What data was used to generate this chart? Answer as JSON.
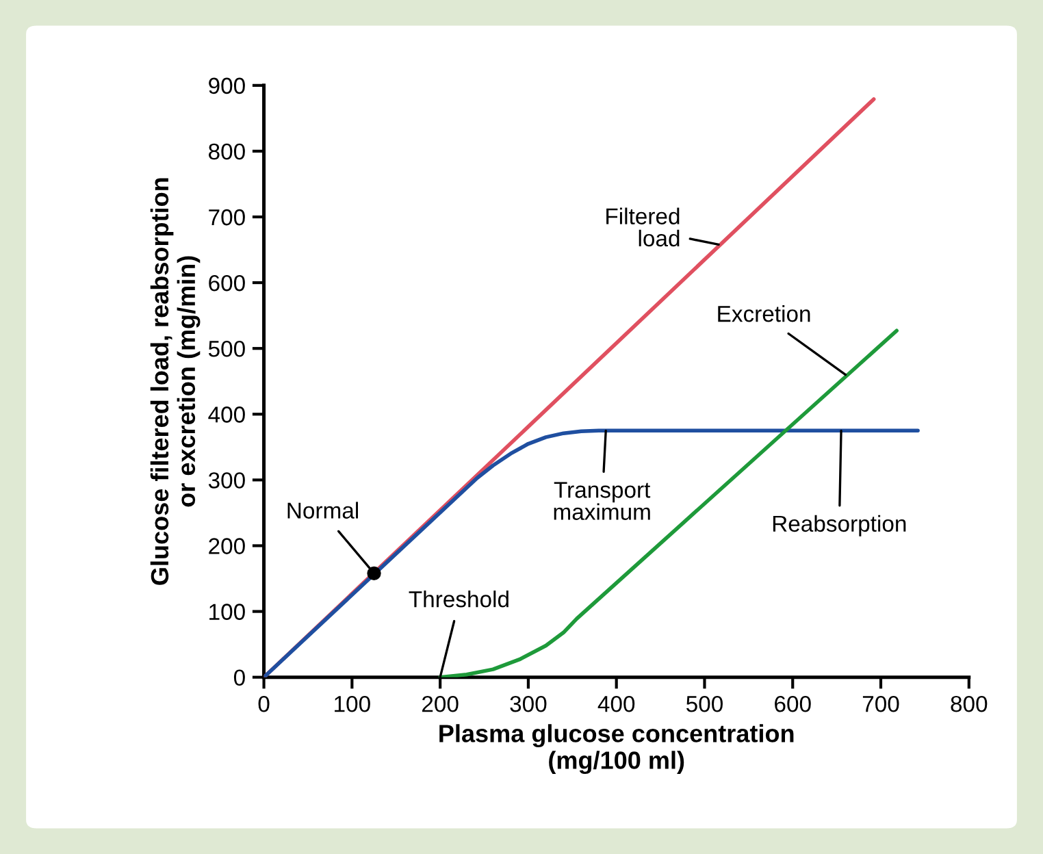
{
  "chart_data": {
    "type": "line",
    "xlabel": "Plasma glucose concentration\n(mg/100 ml)",
    "ylabel": "Glucose filtered load, reabsorption\nor excretion (mg/min)",
    "series": [
      {
        "color": "#e05060",
        "x": [
          0,
          692
        ],
        "values": [
          0,
          879
        ]
      },
      {
        "color": "#1f4fa0",
        "x": [
          0,
          242,
          260,
          280,
          300,
          320,
          340,
          360,
          380,
          742
        ],
        "values": [
          0,
          303,
          322,
          340,
          355,
          365,
          371,
          374,
          375,
          375
        ]
      },
      {
        "color": "#1e9a3a",
        "x": [
          200,
          230,
          260,
          290,
          320,
          340,
          355,
          718
        ],
        "values": [
          0,
          4,
          12,
          27,
          48,
          68,
          89,
          527
        ]
      },
      {
        "type": "scatter",
        "marker": "circle",
        "color": "#000000",
        "x": [
          125
        ],
        "values": [
          158
        ]
      }
    ],
    "annotations": [
      {
        "text": "Filtered\nload",
        "x": 516,
        "y": 658
      },
      {
        "text": "Excretion",
        "x": 660,
        "y": 460
      },
      {
        "text": "Transport\nmaximum",
        "x": 388,
        "y": 375
      },
      {
        "text": "Reabsorption",
        "x": 655,
        "y": 375
      },
      {
        "text": "Normal",
        "x": 125,
        "y": 158
      },
      {
        "text": "Threshold",
        "x": 200,
        "y": 0
      }
    ],
    "xlim": [
      0,
      800
    ],
    "ylim": [
      0,
      900
    ],
    "xticks": [
      0,
      100,
      200,
      300,
      400,
      500,
      600,
      700,
      800
    ],
    "yticks": [
      0,
      100,
      200,
      300,
      400,
      500,
      600,
      700,
      800,
      900
    ],
    "grid": false,
    "marker": "none",
    "line_style": "solid"
  }
}
